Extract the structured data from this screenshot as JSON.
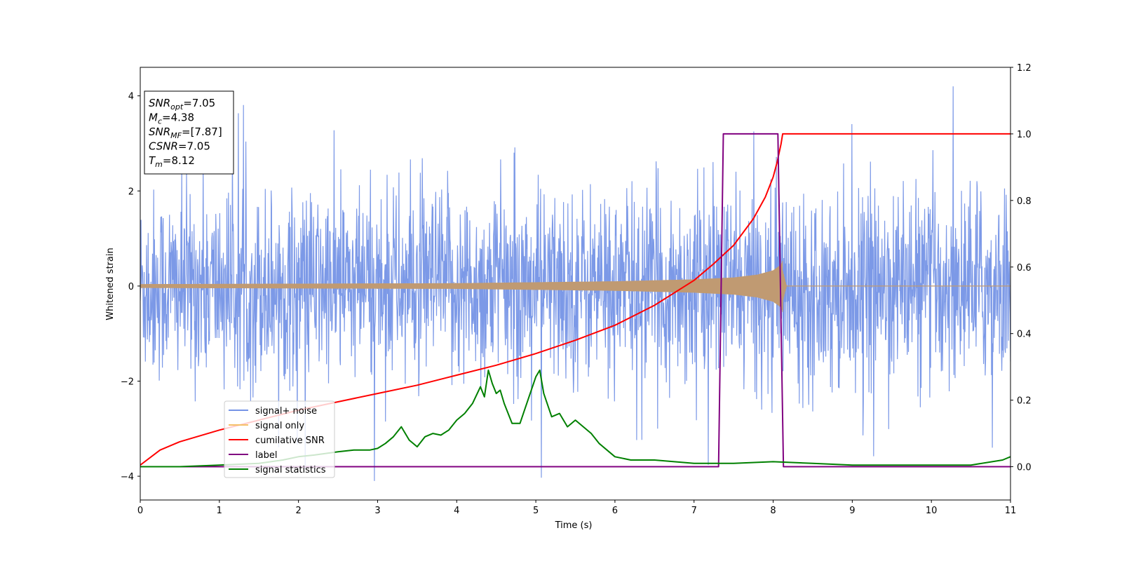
{
  "chart_data": {
    "type": "line",
    "xlabel": "Time (s)",
    "ylabel": "Whitened strain",
    "xlim": [
      0,
      11
    ],
    "ylim": [
      -4.5,
      4.6
    ],
    "y2lim": [
      -0.1,
      1.2
    ],
    "xticks": [
      "0",
      "1",
      "2",
      "3",
      "4",
      "5",
      "6",
      "7",
      "8",
      "9",
      "10",
      "11"
    ],
    "yticks": [
      "−4",
      "−2",
      "0",
      "2",
      "4"
    ],
    "y2ticks": [
      "0.0",
      "0.2",
      "0.4",
      "0.6",
      "0.8",
      "1.0",
      "1.2"
    ],
    "legend_position": "lower-left",
    "annotations": [
      {
        "name": "SNR",
        "sub": "opt",
        "value": "=7.05"
      },
      {
        "name": "M",
        "sub": "c",
        "value": "=4.38"
      },
      {
        "name": "SNR",
        "sub": "MF",
        "value": "=[7.87]"
      },
      {
        "name": "CSNR",
        "sub": "",
        "value": "=7.05"
      },
      {
        "name": "T",
        "sub": "m",
        "value": "=8.12"
      }
    ],
    "series": [
      {
        "name": "signal+ noise",
        "axis": "left",
        "color": "#7593e6",
        "kind": "noise",
        "x_range": [
          0,
          11
        ],
        "std": 1.0,
        "envelope_max": 4.2,
        "envelope_min": -4.1
      },
      {
        "name": "signal only",
        "axis": "left",
        "color": "#c09a72",
        "kind": "chirp",
        "merger_time": 8.12,
        "peak_amplitude": 0.55,
        "x": [
          0,
          2,
          4,
          5,
          6,
          7,
          7.5,
          7.8,
          8.0,
          8.1,
          8.12
        ],
        "amplitude": [
          0.04,
          0.05,
          0.06,
          0.08,
          0.1,
          0.14,
          0.18,
          0.24,
          0.33,
          0.45,
          0.55
        ]
      },
      {
        "name": "cumilative SNR",
        "axis": "right",
        "color": "#ff0000",
        "x": [
          0,
          0.25,
          0.5,
          1,
          1.5,
          2,
          2.5,
          3,
          3.5,
          4,
          4.5,
          5,
          5.5,
          6,
          6.5,
          7,
          7.25,
          7.5,
          7.75,
          7.9,
          8.0,
          8.05,
          8.1,
          8.12,
          11
        ],
        "values": [
          0.005,
          0.05,
          0.075,
          0.11,
          0.14,
          0.17,
          0.195,
          0.22,
          0.245,
          0.275,
          0.305,
          0.34,
          0.38,
          0.425,
          0.485,
          0.56,
          0.61,
          0.665,
          0.745,
          0.81,
          0.87,
          0.915,
          0.97,
          1.0,
          1.0
        ]
      },
      {
        "name": "label",
        "axis": "right",
        "color": "#800080",
        "x": [
          0,
          7.31,
          7.37,
          8.06,
          8.13,
          11
        ],
        "values": [
          0,
          0,
          1,
          1,
          0,
          0
        ]
      },
      {
        "name": "signal statistics",
        "axis": "right",
        "color": "#008000",
        "x": [
          0,
          0.5,
          1,
          1.5,
          1.8,
          2.0,
          2.2,
          2.5,
          2.7,
          2.9,
          3.0,
          3.1,
          3.2,
          3.3,
          3.4,
          3.5,
          3.6,
          3.7,
          3.8,
          3.9,
          4.0,
          4.1,
          4.2,
          4.3,
          4.35,
          4.4,
          4.45,
          4.5,
          4.55,
          4.6,
          4.7,
          4.8,
          4.9,
          5.0,
          5.05,
          5.1,
          5.2,
          5.3,
          5.4,
          5.5,
          5.6,
          5.7,
          5.8,
          5.9,
          6.0,
          6.2,
          6.5,
          7.0,
          7.3,
          7.5,
          8.0,
          8.5,
          9.0,
          10.0,
          10.5,
          10.9,
          11.0
        ],
        "values": [
          0.0,
          0.0,
          0.005,
          0.01,
          0.02,
          0.03,
          0.035,
          0.045,
          0.05,
          0.05,
          0.055,
          0.07,
          0.09,
          0.12,
          0.08,
          0.06,
          0.09,
          0.1,
          0.095,
          0.11,
          0.14,
          0.16,
          0.19,
          0.24,
          0.21,
          0.29,
          0.25,
          0.22,
          0.23,
          0.19,
          0.13,
          0.13,
          0.2,
          0.27,
          0.29,
          0.22,
          0.15,
          0.16,
          0.12,
          0.14,
          0.12,
          0.1,
          0.07,
          0.05,
          0.03,
          0.02,
          0.02,
          0.01,
          0.01,
          0.01,
          0.015,
          0.01,
          0.005,
          0.005,
          0.005,
          0.02,
          0.03
        ]
      }
    ]
  }
}
